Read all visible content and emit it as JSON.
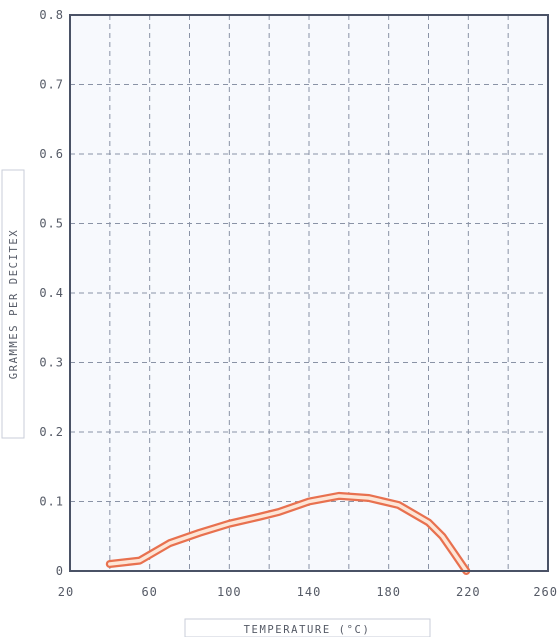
{
  "chart_data": {
    "type": "line",
    "title": "",
    "xlabel": "Temperature (°C)",
    "ylabel": "Grammes per decitex",
    "xlim": [
      20,
      260
    ],
    "ylim": [
      0,
      0.8
    ],
    "x_ticks": [
      20,
      60,
      100,
      140,
      180,
      220,
      260
    ],
    "x_tick_labels": [
      "20",
      "60",
      "100",
      "140",
      "180",
      "220",
      "260"
    ],
    "y_ticks": [
      0,
      0.1,
      0.2,
      0.3,
      0.4,
      0.5,
      0.6,
      0.7,
      0.8
    ],
    "y_tick_labels": [
      "0",
      "0.1",
      "0.2",
      "0.3",
      "0.4",
      "0.5",
      "0.6",
      "0.7",
      "0.8"
    ],
    "grid": true,
    "legend": "none",
    "series": [
      {
        "color": "#e8714f",
        "x": [
          40,
          55,
          70,
          85,
          100,
          115,
          125,
          140,
          155,
          170,
          185,
          200,
          207,
          213,
          219
        ],
        "y": [
          0.01,
          0.015,
          0.04,
          0.055,
          0.068,
          0.078,
          0.085,
          0.1,
          0.108,
          0.105,
          0.095,
          0.07,
          0.05,
          0.025,
          0
        ]
      }
    ]
  },
  "colors": {
    "plot_background": "#f7f9fd",
    "frame": "#4a5266",
    "grid": "#8a93a6",
    "line_outer": "#e8714f",
    "line_inner": "#fde6d7"
  }
}
